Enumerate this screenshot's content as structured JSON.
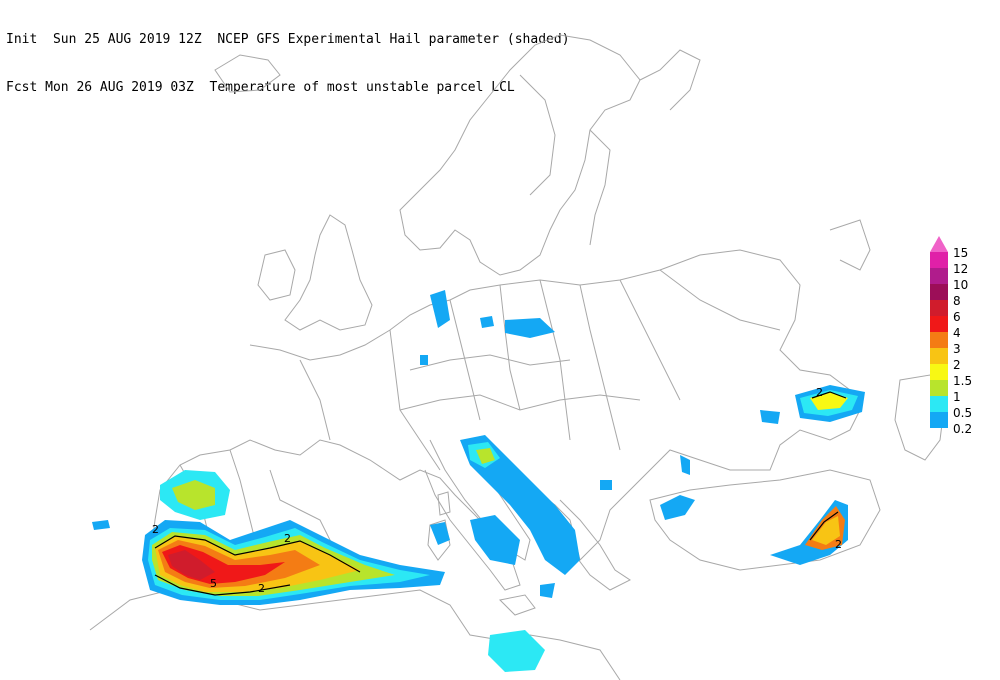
{
  "header": {
    "line1": "Init  Sun 25 AUG 2019 12Z  NCEP GFS Experimental Hail parameter (shaded)",
    "line2": "Fcst Mon 26 AUG 2019 03Z  Temperature of most unstable parcel LCL"
  },
  "legend": {
    "items": [
      {
        "label": "15",
        "color": "#f062c8"
      },
      {
        "label": "12",
        "color": "#e020a8"
      },
      {
        "label": "10",
        "color": "#b01c8c"
      },
      {
        "label": "8",
        "color": "#9c0e58"
      },
      {
        "label": "6",
        "color": "#d01c2c"
      },
      {
        "label": "4",
        "color": "#f01818"
      },
      {
        "label": "3",
        "color": "#f47c14"
      },
      {
        "label": "2",
        "color": "#f8c414"
      },
      {
        "label": "1.5",
        "color": "#f8f814"
      },
      {
        "label": "1",
        "color": "#b8e42c"
      },
      {
        "label": "0.5",
        "color": "#2ce8f4"
      },
      {
        "label": "0.2",
        "color": "#14a8f4"
      }
    ]
  },
  "contour_labels": {
    "a": "2",
    "b": "2",
    "c": "5",
    "d": "2",
    "e": "2",
    "f": "2"
  },
  "colors": {
    "border": "#a8a8a8",
    "contour": "#000000"
  }
}
